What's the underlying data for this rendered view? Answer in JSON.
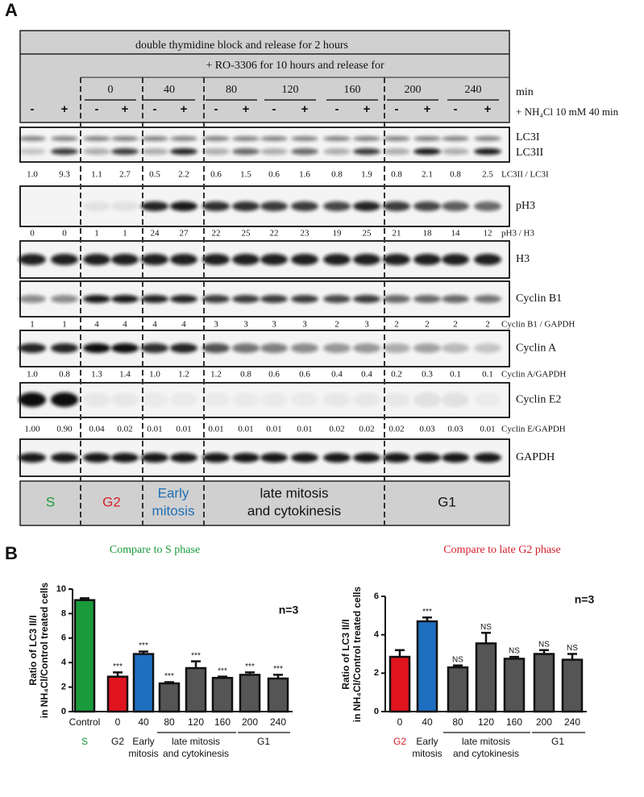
{
  "panel_a": {
    "label": "A",
    "header_line1": "double thymidine block and release for 2 hours",
    "header_line2": "+ RO-3306 for 10 hours and release for",
    "times": [
      "0",
      "40",
      "80",
      "120",
      "160",
      "200",
      "240"
    ],
    "time_unit": "min",
    "signs": [
      "-",
      "+",
      "-",
      "+",
      "-",
      "+",
      "-",
      "+",
      "-",
      "+",
      "-",
      "+",
      "-",
      "+",
      "-",
      "+"
    ],
    "treatment": "+ NH₄Cl 10 mM 40 min",
    "blots": [
      {
        "labels": [
          "LC3I",
          "LC3II"
        ],
        "quant": {
          "label": "LC3II / LC3I",
          "values": [
            "1.0",
            "9.3",
            "1.1",
            "2.7",
            "0.5",
            "2.2",
            "0.6",
            "1.5",
            "0.6",
            "1.6",
            "0.8",
            "1.9",
            "0.8",
            "2.1",
            "0.8",
            "2.5"
          ]
        }
      },
      {
        "labels": [
          "pH3"
        ],
        "quant": {
          "label": "pH3 / H3",
          "values": [
            "0",
            "0",
            "1",
            "1",
            "24",
            "27",
            "22",
            "25",
            "22",
            "23",
            "19",
            "25",
            "21",
            "18",
            "14",
            "12"
          ]
        }
      },
      {
        "labels": [
          "H3"
        ]
      },
      {
        "labels": [
          "Cyclin B1"
        ],
        "quant": {
          "label": "Cyclin B1 / GAPDH",
          "values": [
            "1",
            "1",
            "4",
            "4",
            "4",
            "4",
            "3",
            "3",
            "3",
            "3",
            "2",
            "3",
            "2",
            "2",
            "2",
            "2"
          ]
        }
      },
      {
        "labels": [
          "Cyclin A"
        ],
        "quant": {
          "label": "Cyclin A/GAPDH",
          "values": [
            "1.0",
            "0.8",
            "1.3",
            "1.4",
            "1.0",
            "1.2",
            "1.2",
            "0.8",
            "0.6",
            "0.6",
            "0.4",
            "0.4",
            "0.2",
            "0.3",
            "0.1",
            "0.1"
          ]
        }
      },
      {
        "labels": [
          "Cyclin E2"
        ],
        "quant": {
          "label": "Cyclin E/GAPDH",
          "values": [
            "1.00",
            "0.90",
            "0.04",
            "0.02",
            "0.01",
            "0.01",
            "0.01",
            "0.01",
            "0.01",
            "0.01",
            "0.02",
            "0.02",
            "0.02",
            "0.03",
            "0.03",
            "0.01"
          ]
        }
      },
      {
        "labels": [
          "GAPDH"
        ]
      }
    ],
    "phases": [
      {
        "lines": [
          "S"
        ],
        "color": "#1a9a3a"
      },
      {
        "lines": [
          "G2"
        ],
        "color": "#d4202a"
      },
      {
        "lines": [
          "Early",
          "mitosis"
        ],
        "color": "#1f6fb5"
      },
      {
        "lines": [
          "late mitosis",
          "and cytokinesis"
        ],
        "color": "#111111"
      },
      {
        "lines": [
          "G1"
        ],
        "color": "#111111"
      }
    ]
  },
  "panel_b": {
    "label": "B"
  },
  "chart_data": [
    {
      "type": "bar",
      "title": "Compare to S phase",
      "title_color": "#1a9a3a",
      "ylabel": [
        "Ratio of LC3 II/I",
        "in NH₄Cl/Control treated cells"
      ],
      "note": "n=3",
      "categories": [
        "Control",
        "0",
        "40",
        "80",
        "120",
        "160",
        "200",
        "240"
      ],
      "values": [
        9.1,
        2.85,
        4.7,
        2.3,
        3.55,
        2.75,
        3.0,
        2.7
      ],
      "errors": [
        0.15,
        0.35,
        0.2,
        0.1,
        0.55,
        0.1,
        0.2,
        0.3
      ],
      "annotations": [
        null,
        "***",
        "***",
        "***",
        "***",
        "***",
        "***",
        "***"
      ],
      "colors": [
        "#1a9a3a",
        "#e0141e",
        "#1f6fc0",
        "#555555",
        "#555555",
        "#555555",
        "#555555",
        "#555555"
      ],
      "ylim": [
        0,
        10
      ],
      "yticks": [
        0,
        2,
        4,
        6,
        8,
        10
      ],
      "groups": [
        {
          "lines": [
            "S"
          ],
          "color": "#1a9a3a"
        },
        {
          "lines": [
            "G2"
          ],
          "color": "#111111"
        },
        {
          "lines": [
            "Early",
            "mitosis"
          ],
          "color": "#111111"
        },
        {
          "lines": [
            "late mitosis",
            "and cytokinesis"
          ],
          "color": "#111111"
        },
        {
          "lines": [
            "G1"
          ],
          "color": "#111111"
        }
      ]
    },
    {
      "type": "bar",
      "title": "Compare to late G2 phase",
      "title_color": "#d4202a",
      "ylabel": [
        "Ratio of LC3 II/I",
        "in NH₄Cl/Control treated cells"
      ],
      "note": "n=3",
      "categories": [
        "0",
        "40",
        "80",
        "120",
        "160",
        "200",
        "240"
      ],
      "values": [
        2.85,
        4.7,
        2.3,
        3.55,
        2.75,
        3.0,
        2.7
      ],
      "errors": [
        0.35,
        0.2,
        0.1,
        0.55,
        0.1,
        0.2,
        0.3
      ],
      "annotations": [
        null,
        "***",
        "NS",
        "NS",
        "NS",
        "NS",
        "NS"
      ],
      "colors": [
        "#e0141e",
        "#1f6fc0",
        "#555555",
        "#555555",
        "#555555",
        "#555555",
        "#555555"
      ],
      "ylim": [
        0,
        6
      ],
      "yticks": [
        0,
        2,
        4,
        6
      ],
      "groups": [
        {
          "lines": [
            "G2"
          ],
          "color": "#d4202a"
        },
        {
          "lines": [
            "Early",
            "mitosis"
          ],
          "color": "#111111"
        },
        {
          "lines": [
            "late mitosis",
            "and cytokinesis"
          ],
          "color": "#111111"
        },
        {
          "lines": [
            "G1"
          ],
          "color": "#111111"
        }
      ]
    }
  ]
}
